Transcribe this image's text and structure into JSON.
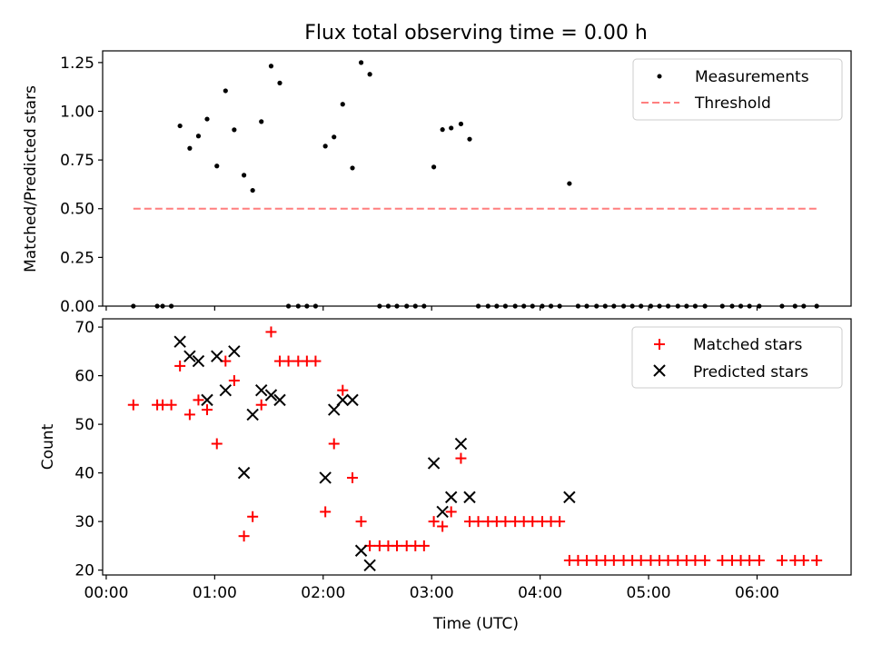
{
  "title": "Flux total observing time = 0.00 h",
  "chart_data": [
    {
      "type": "scatter",
      "panel": "top",
      "ylabel": "Matched/Predicted stars",
      "xlabel": "",
      "xlim": [
        -0.033,
        6.867
      ],
      "ylim": [
        0,
        1.31
      ],
      "yticks": [
        0,
        0.25,
        0.5,
        0.75,
        1.0,
        1.25
      ],
      "ytick_labels": [
        "0.00",
        "0.25",
        "0.50",
        "0.75",
        "1.00",
        "1.25"
      ],
      "legend": {
        "position": "top-right",
        "entries": [
          "Measurements",
          "Threshold"
        ]
      },
      "series": [
        {
          "name": "Measurements",
          "color": "#000000",
          "marker": "dot",
          "points": [
            [
              0.25,
              0.0
            ],
            [
              0.47,
              0.0
            ],
            [
              0.52,
              0.0
            ],
            [
              0.6,
              0.0
            ],
            [
              0.68,
              0.925
            ],
            [
              0.77,
              0.81
            ],
            [
              0.85,
              0.873
            ],
            [
              0.93,
              0.96
            ],
            [
              1.02,
              0.719
            ],
            [
              1.1,
              1.105
            ],
            [
              1.18,
              0.905
            ],
            [
              1.27,
              0.672
            ],
            [
              1.35,
              0.594
            ],
            [
              1.43,
              0.947
            ],
            [
              1.52,
              1.232
            ],
            [
              1.6,
              1.145
            ],
            [
              1.68,
              0.0
            ],
            [
              1.77,
              0.0
            ],
            [
              1.85,
              0.0
            ],
            [
              1.93,
              0.0
            ],
            [
              2.02,
              0.821
            ],
            [
              2.1,
              0.868
            ],
            [
              2.18,
              1.036
            ],
            [
              2.27,
              0.709
            ],
            [
              2.35,
              1.25
            ],
            [
              2.43,
              1.19
            ],
            [
              2.52,
              0.0
            ],
            [
              2.6,
              0.0
            ],
            [
              2.68,
              0.0
            ],
            [
              2.77,
              0.0
            ],
            [
              2.85,
              0.0
            ],
            [
              2.93,
              0.0
            ],
            [
              3.02,
              0.714
            ],
            [
              3.1,
              0.906
            ],
            [
              3.18,
              0.914
            ],
            [
              3.27,
              0.935
            ],
            [
              3.35,
              0.857
            ],
            [
              3.43,
              0.0
            ],
            [
              3.52,
              0.0
            ],
            [
              3.6,
              0.0
            ],
            [
              3.68,
              0.0
            ],
            [
              3.77,
              0.0
            ],
            [
              3.85,
              0.0
            ],
            [
              3.93,
              0.0
            ],
            [
              4.02,
              0.0
            ],
            [
              4.1,
              0.0
            ],
            [
              4.18,
              0.0
            ],
            [
              4.27,
              0.629
            ],
            [
              4.35,
              0.0
            ],
            [
              4.43,
              0.0
            ],
            [
              4.52,
              0.0
            ],
            [
              4.6,
              0.0
            ],
            [
              4.68,
              0.0
            ],
            [
              4.77,
              0.0
            ],
            [
              4.85,
              0.0
            ],
            [
              4.93,
              0.0
            ],
            [
              5.02,
              0.0
            ],
            [
              5.1,
              0.0
            ],
            [
              5.18,
              0.0
            ],
            [
              5.27,
              0.0
            ],
            [
              5.35,
              0.0
            ],
            [
              5.43,
              0.0
            ],
            [
              5.52,
              0.0
            ],
            [
              5.68,
              0.0
            ],
            [
              5.77,
              0.0
            ],
            [
              5.85,
              0.0
            ],
            [
              5.93,
              0.0
            ],
            [
              6.02,
              0.0
            ],
            [
              6.23,
              0.0
            ],
            [
              6.35,
              0.0
            ],
            [
              6.43,
              0.0
            ],
            [
              6.55,
              0.0
            ]
          ]
        },
        {
          "name": "Threshold",
          "color": "#ff7f7f",
          "style": "dashed-line",
          "x": [
            0.25,
            6.55
          ],
          "y": [
            0.5,
            0.5
          ]
        }
      ]
    },
    {
      "type": "scatter",
      "panel": "bottom",
      "ylabel": "Count",
      "xlabel": "Time (UTC)",
      "xlim": [
        -0.033,
        6.867
      ],
      "ylim": [
        19.0,
        71.7
      ],
      "yticks": [
        20,
        30,
        40,
        50,
        60,
        70
      ],
      "ytick_labels": [
        "20",
        "30",
        "40",
        "50",
        "60",
        "70"
      ],
      "xticks": [
        0,
        1,
        2,
        3,
        4,
        5,
        6
      ],
      "xtick_labels": [
        "00:00",
        "01:00",
        "02:00",
        "03:00",
        "04:00",
        "05:00",
        "06:00"
      ],
      "legend": {
        "position": "top-right",
        "entries": [
          "Matched stars",
          "Predicted stars"
        ]
      },
      "series": [
        {
          "name": "Matched stars",
          "color": "#ff0000",
          "marker": "plus",
          "points": [
            [
              0.25,
              54
            ],
            [
              0.47,
              54
            ],
            [
              0.52,
              54
            ],
            [
              0.6,
              54
            ],
            [
              0.68,
              62
            ],
            [
              0.77,
              52
            ],
            [
              0.85,
              55
            ],
            [
              0.93,
              53
            ],
            [
              1.02,
              46
            ],
            [
              1.1,
              63
            ],
            [
              1.18,
              59
            ],
            [
              1.27,
              27
            ],
            [
              1.35,
              31
            ],
            [
              1.43,
              54
            ],
            [
              1.52,
              69
            ],
            [
              1.6,
              63
            ],
            [
              1.68,
              63
            ],
            [
              1.77,
              63
            ],
            [
              1.85,
              63
            ],
            [
              1.93,
              63
            ],
            [
              2.02,
              32
            ],
            [
              2.1,
              46
            ],
            [
              2.18,
              57
            ],
            [
              2.27,
              39
            ],
            [
              2.35,
              30
            ],
            [
              2.43,
              25
            ],
            [
              2.52,
              25
            ],
            [
              2.6,
              25
            ],
            [
              2.68,
              25
            ],
            [
              2.77,
              25
            ],
            [
              2.85,
              25
            ],
            [
              2.93,
              25
            ],
            [
              3.02,
              30
            ],
            [
              3.1,
              29
            ],
            [
              3.18,
              32
            ],
            [
              3.27,
              43
            ],
            [
              3.35,
              30
            ],
            [
              3.43,
              30
            ],
            [
              3.52,
              30
            ],
            [
              3.6,
              30
            ],
            [
              3.68,
              30
            ],
            [
              3.77,
              30
            ],
            [
              3.85,
              30
            ],
            [
              3.93,
              30
            ],
            [
              4.02,
              30
            ],
            [
              4.1,
              30
            ],
            [
              4.18,
              30
            ],
            [
              4.27,
              22
            ],
            [
              4.35,
              22
            ],
            [
              4.43,
              22
            ],
            [
              4.52,
              22
            ],
            [
              4.6,
              22
            ],
            [
              4.68,
              22
            ],
            [
              4.77,
              22
            ],
            [
              4.85,
              22
            ],
            [
              4.93,
              22
            ],
            [
              5.02,
              22
            ],
            [
              5.1,
              22
            ],
            [
              5.18,
              22
            ],
            [
              5.27,
              22
            ],
            [
              5.35,
              22
            ],
            [
              5.43,
              22
            ],
            [
              5.52,
              22
            ],
            [
              5.68,
              22
            ],
            [
              5.77,
              22
            ],
            [
              5.85,
              22
            ],
            [
              5.93,
              22
            ],
            [
              6.02,
              22
            ],
            [
              6.23,
              22
            ],
            [
              6.35,
              22
            ],
            [
              6.43,
              22
            ],
            [
              6.55,
              22
            ]
          ]
        },
        {
          "name": "Predicted stars",
          "color": "#000000",
          "marker": "x",
          "points": [
            [
              0.68,
              67
            ],
            [
              0.77,
              64
            ],
            [
              0.85,
              63
            ],
            [
              0.93,
              55
            ],
            [
              1.02,
              64
            ],
            [
              1.1,
              57
            ],
            [
              1.18,
              65
            ],
            [
              1.27,
              40
            ],
            [
              1.35,
              52
            ],
            [
              1.43,
              57
            ],
            [
              1.52,
              56
            ],
            [
              1.6,
              55
            ],
            [
              2.02,
              39
            ],
            [
              2.1,
              53
            ],
            [
              2.18,
              55
            ],
            [
              2.27,
              55
            ],
            [
              2.35,
              24
            ],
            [
              2.43,
              21
            ],
            [
              3.02,
              42
            ],
            [
              3.1,
              32
            ],
            [
              3.18,
              35
            ],
            [
              3.27,
              46
            ],
            [
              3.35,
              35
            ],
            [
              4.27,
              35
            ]
          ]
        }
      ]
    }
  ]
}
